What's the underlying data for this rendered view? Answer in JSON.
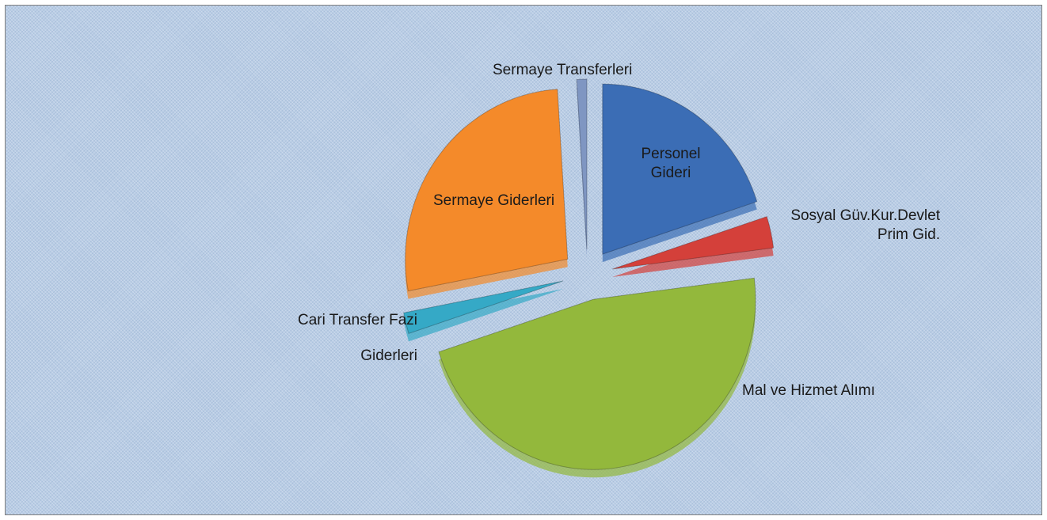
{
  "chart_data": {
    "type": "pie",
    "categories": [
      "Personel Gideri",
      "Sosyal Güv.Kur.Devlet Prim Gid.",
      "Mal ve Hizmet Alımı",
      "Cari Transfer Fazi Giderleri",
      "Sermaye Giderleri",
      "Sermaye Transferleri"
    ],
    "values": [
      20,
      3,
      47,
      2,
      27,
      1
    ],
    "colors": [
      "#3b6db5",
      "#d4403a",
      "#93b83c",
      "#35a9c6",
      "#f48a2a",
      "#7f96c2"
    ]
  }
}
